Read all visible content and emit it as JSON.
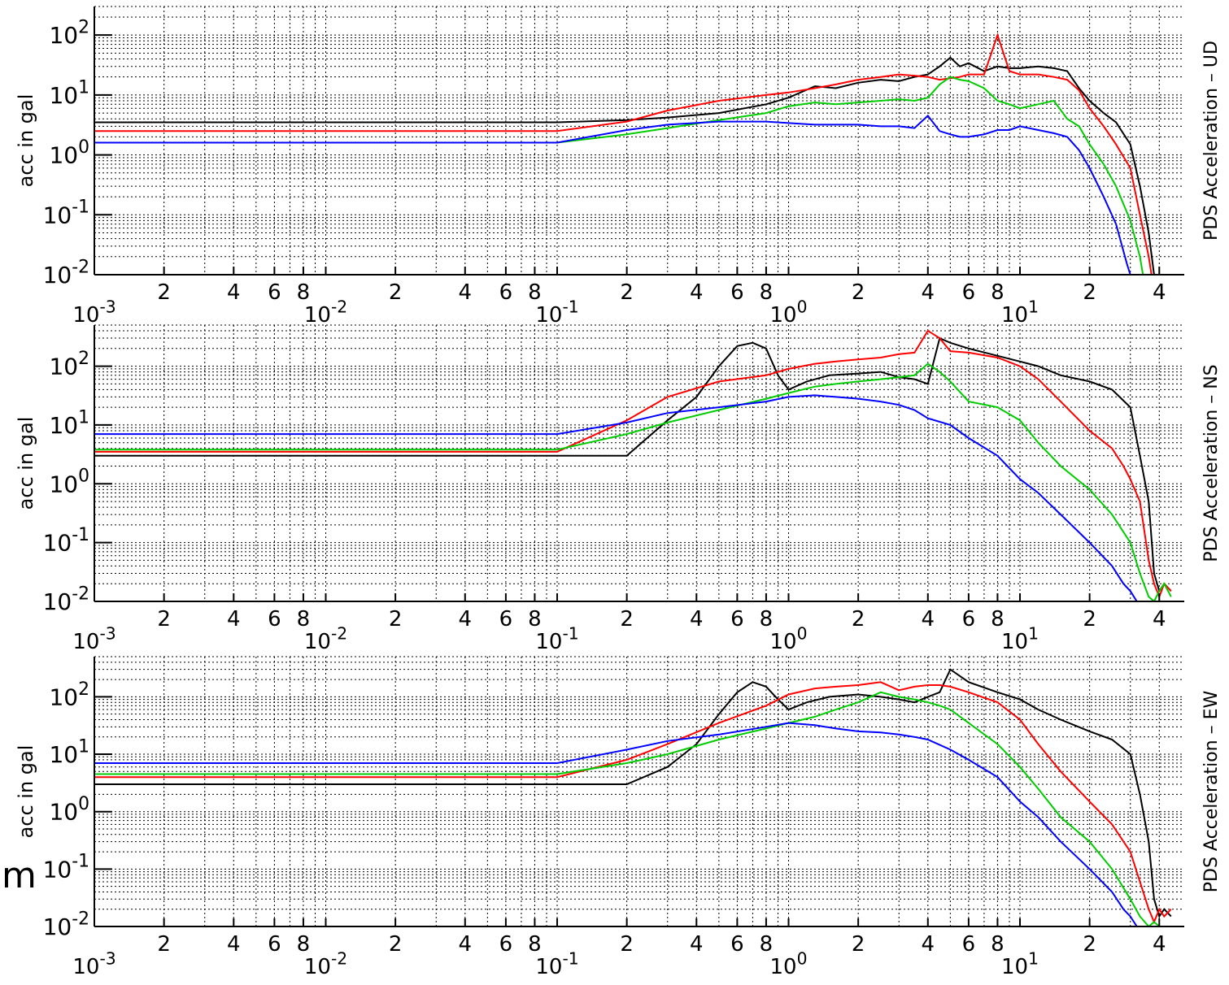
{
  "stray_text": "m",
  "chart_data": [
    {
      "type": "line",
      "xscale": "log",
      "yscale": "log",
      "xlim": [
        0.001,
        45
      ],
      "ylim": [
        0.01,
        300
      ],
      "grid": true,
      "ylabel": "acc in gal",
      "right_label": "PDS Acceleration – UD",
      "xticks": [
        "10^-3",
        "2",
        "4",
        "6",
        "8",
        "10^-2",
        "2",
        "4",
        "6",
        "8",
        "10^-1",
        "2",
        "4",
        "6",
        "8",
        "10^0",
        "2",
        "4",
        "6",
        "8",
        "10^1",
        "2",
        "4"
      ],
      "yticks": [
        "10^-2",
        "10^-1",
        "10^0",
        "10^1",
        "10^2"
      ],
      "series": [
        {
          "color": "#000000",
          "x": [
            0.001,
            0.1,
            0.2,
            0.3,
            0.5,
            0.8,
            1.0,
            1.3,
            1.6,
            2,
            2.5,
            3,
            3.5,
            4,
            4.5,
            5,
            5.5,
            6,
            7,
            8,
            9,
            10,
            12,
            14,
            16,
            18,
            20,
            23,
            26,
            30,
            33,
            36,
            38
          ],
          "y": [
            3.5,
            3.5,
            3.8,
            4.2,
            5,
            7,
            9,
            14,
            13,
            16,
            18,
            17,
            20,
            22,
            30,
            42,
            30,
            34,
            25,
            30,
            28,
            28,
            30,
            28,
            25,
            13,
            8,
            5,
            3.5,
            1.5,
            0.3,
            0.05,
            0.01
          ]
        },
        {
          "color": "#ff0000",
          "x": [
            0.001,
            0.1,
            0.2,
            0.3,
            0.5,
            0.8,
            1.0,
            1.3,
            1.6,
            2,
            2.5,
            3,
            3.5,
            4,
            4.5,
            5,
            5.5,
            6,
            7,
            8,
            9,
            10,
            12,
            14,
            16,
            18,
            20,
            23,
            26,
            30,
            33,
            36,
            37
          ],
          "y": [
            2.5,
            2.5,
            3.6,
            5.5,
            8,
            10,
            11,
            13,
            15,
            18,
            20,
            22,
            21,
            20,
            18,
            19,
            20,
            22,
            22,
            100,
            25,
            22,
            22,
            20,
            18,
            12,
            6,
            3,
            1.5,
            0.6,
            0.1,
            0.02,
            0.01
          ]
        },
        {
          "color": "#00cc00",
          "x": [
            0.001,
            0.1,
            0.2,
            0.3,
            0.5,
            0.8,
            1.0,
            1.3,
            1.6,
            2,
            2.5,
            3,
            3.5,
            4,
            4.5,
            5,
            5.5,
            6,
            7,
            8,
            9,
            10,
            12,
            14,
            16,
            18,
            20,
            23,
            26,
            30,
            33,
            34
          ],
          "y": [
            1.6,
            1.6,
            2.2,
            2.8,
            3.8,
            5,
            6.5,
            7.5,
            7,
            7.5,
            8,
            8.5,
            8,
            9,
            15,
            20,
            18,
            17,
            13,
            8,
            7,
            6,
            7,
            8,
            4,
            3,
            1.5,
            0.7,
            0.3,
            0.08,
            0.02,
            0.01
          ]
        },
        {
          "color": "#0000ff",
          "x": [
            0.001,
            0.1,
            0.2,
            0.3,
            0.5,
            0.8,
            1.0,
            1.3,
            1.6,
            2,
            2.5,
            3,
            3.5,
            4,
            4.5,
            5,
            5.5,
            6,
            7,
            8,
            9,
            10,
            12,
            14,
            16,
            18,
            20,
            23,
            26,
            29,
            30
          ],
          "y": [
            1.6,
            1.6,
            2.6,
            3.2,
            3.6,
            3.6,
            3.4,
            3.2,
            3.2,
            3.2,
            3,
            3,
            2.8,
            4.5,
            2.5,
            2.2,
            2,
            2,
            2.2,
            2.6,
            2.6,
            3,
            2.6,
            2.3,
            2,
            1.2,
            0.6,
            0.2,
            0.07,
            0.015,
            0.01
          ]
        }
      ]
    },
    {
      "type": "line",
      "xscale": "log",
      "yscale": "log",
      "xlim": [
        0.001,
        45
      ],
      "ylim": [
        0.01,
        500
      ],
      "grid": true,
      "ylabel": "acc in gal",
      "right_label": "PDS Acceleration – NS",
      "xticks": [
        "10^-3",
        "2",
        "4",
        "6",
        "8",
        "10^-2",
        "2",
        "4",
        "6",
        "8",
        "10^-1",
        "2",
        "4",
        "6",
        "8",
        "10^0",
        "2",
        "4",
        "6",
        "8",
        "10^1",
        "2",
        "4"
      ],
      "yticks": [
        "10^-2",
        "10^-1",
        "10^0",
        "10^1",
        "10^2"
      ],
      "series": [
        {
          "color": "#000000",
          "x": [
            0.001,
            0.1,
            0.2,
            0.3,
            0.4,
            0.5,
            0.6,
            0.7,
            0.8,
            0.9,
            1.0,
            1.2,
            1.5,
            2,
            2.5,
            3,
            3.5,
            4,
            4.5,
            5,
            6,
            8,
            10,
            12,
            15,
            20,
            25,
            30,
            33,
            36,
            38,
            40,
            42,
            45
          ],
          "y": [
            3,
            3,
            3,
            12,
            30,
            100,
            220,
            250,
            200,
            70,
            40,
            55,
            70,
            75,
            80,
            65,
            60,
            50,
            300,
            250,
            200,
            150,
            120,
            100,
            70,
            55,
            40,
            20,
            3,
            0.5,
            0.03,
            0.015,
            0.02,
            0.015
          ]
        },
        {
          "color": "#ff0000",
          "x": [
            0.001,
            0.1,
            0.2,
            0.3,
            0.5,
            0.8,
            1.0,
            1.3,
            1.6,
            2,
            2.5,
            3,
            3.5,
            4,
            4.5,
            5,
            6,
            8,
            10,
            12,
            15,
            20,
            25,
            28,
            30,
            33,
            36,
            38,
            40,
            42,
            45
          ],
          "y": [
            3.5,
            3.5,
            12,
            30,
            55,
            70,
            90,
            110,
            120,
            130,
            140,
            160,
            170,
            400,
            300,
            180,
            170,
            140,
            100,
            60,
            25,
            8,
            4,
            2,
            1.2,
            0.5,
            0.05,
            0.02,
            0.012,
            0.02,
            0.015
          ]
        },
        {
          "color": "#00cc00",
          "x": [
            0.001,
            0.1,
            0.2,
            0.3,
            0.5,
            0.8,
            1.0,
            1.3,
            1.6,
            2,
            2.5,
            3,
            3.5,
            4,
            4.5,
            5,
            6,
            8,
            10,
            12,
            15,
            20,
            25,
            30,
            33,
            36,
            38,
            40,
            42,
            45
          ],
          "y": [
            3.8,
            3.8,
            7,
            11,
            18,
            28,
            35,
            45,
            50,
            55,
            60,
            65,
            70,
            110,
            80,
            55,
            25,
            20,
            12,
            5,
            2,
            0.8,
            0.3,
            0.1,
            0.03,
            0.012,
            0.01,
            0.015,
            0.02,
            0.012
          ]
        },
        {
          "color": "#0000ff",
          "x": [
            0.001,
            0.1,
            0.2,
            0.3,
            0.5,
            0.8,
            1.0,
            1.3,
            1.6,
            2,
            2.5,
            3,
            3.5,
            4,
            5,
            6,
            8,
            10,
            12,
            15,
            20,
            25,
            28,
            30,
            32
          ],
          "y": [
            7,
            7,
            11,
            16,
            20,
            25,
            30,
            32,
            30,
            28,
            25,
            22,
            18,
            13,
            10,
            6,
            3,
            1.2,
            0.7,
            0.3,
            0.1,
            0.04,
            0.02,
            0.015,
            0.01
          ]
        }
      ]
    },
    {
      "type": "line",
      "xscale": "log",
      "yscale": "log",
      "xlim": [
        0.001,
        45
      ],
      "ylim": [
        0.01,
        500
      ],
      "grid": true,
      "ylabel": "acc in gal",
      "right_label": "PDS Acceleration – EW",
      "xticks": [
        "10^-3",
        "2",
        "4",
        "6",
        "8",
        "10^-2",
        "2",
        "4",
        "6",
        "8",
        "10^-1",
        "2",
        "4",
        "6",
        "8",
        "10^0",
        "2",
        "4",
        "6",
        "8",
        "10^1",
        "2",
        "4"
      ],
      "yticks": [
        "10^-2",
        "10^-1",
        "10^0",
        "10^1",
        "10^2"
      ],
      "series": [
        {
          "color": "#000000",
          "x": [
            0.001,
            0.1,
            0.2,
            0.3,
            0.4,
            0.5,
            0.6,
            0.7,
            0.8,
            0.9,
            1.0,
            1.2,
            1.5,
            2,
            2.5,
            3,
            3.5,
            4,
            4.5,
            5,
            6,
            8,
            10,
            12,
            15,
            20,
            25,
            30,
            33,
            36,
            38,
            40,
            42,
            45
          ],
          "y": [
            3,
            3,
            3,
            6,
            15,
            50,
            120,
            180,
            150,
            90,
            60,
            80,
            100,
            110,
            100,
            90,
            80,
            100,
            120,
            300,
            180,
            120,
            90,
            60,
            40,
            25,
            18,
            10,
            2,
            0.3,
            0.03,
            0.015,
            0.02,
            0.015
          ]
        },
        {
          "color": "#ff0000",
          "x": [
            0.001,
            0.1,
            0.2,
            0.3,
            0.5,
            0.8,
            1.0,
            1.3,
            1.6,
            2,
            2.5,
            3,
            3.5,
            4,
            4.5,
            5,
            6,
            8,
            10,
            12,
            15,
            20,
            25,
            30,
            33,
            36,
            38,
            40,
            42,
            45
          ],
          "y": [
            4,
            4,
            8,
            15,
            35,
            70,
            110,
            140,
            150,
            160,
            180,
            130,
            150,
            160,
            160,
            150,
            120,
            80,
            40,
            15,
            5,
            1.5,
            0.6,
            0.2,
            0.06,
            0.02,
            0.012,
            0.02,
            0.015,
            0.02
          ]
        },
        {
          "color": "#00cc00",
          "x": [
            0.001,
            0.1,
            0.2,
            0.3,
            0.5,
            0.8,
            1.0,
            1.3,
            1.6,
            2,
            2.5,
            3,
            3.5,
            4,
            4.5,
            5,
            6,
            8,
            10,
            12,
            15,
            20,
            25,
            30,
            33,
            36,
            38,
            40
          ],
          "y": [
            4.5,
            4.5,
            7,
            10,
            18,
            28,
            35,
            45,
            60,
            80,
            120,
            100,
            90,
            80,
            70,
            60,
            35,
            15,
            6,
            2.5,
            0.8,
            0.3,
            0.1,
            0.03,
            0.015,
            0.01,
            0.012,
            0.01
          ]
        },
        {
          "color": "#0000ff",
          "x": [
            0.001,
            0.1,
            0.2,
            0.3,
            0.5,
            0.8,
            1.0,
            1.3,
            1.6,
            2,
            2.5,
            3,
            3.5,
            4,
            5,
            6,
            8,
            10,
            12,
            15,
            20,
            25,
            28,
            30,
            32
          ],
          "y": [
            7,
            7,
            12,
            17,
            22,
            30,
            35,
            32,
            28,
            25,
            24,
            22,
            20,
            18,
            12,
            8,
            4,
            1.5,
            0.8,
            0.3,
            0.1,
            0.04,
            0.02,
            0.015,
            0.01
          ]
        }
      ]
    }
  ]
}
